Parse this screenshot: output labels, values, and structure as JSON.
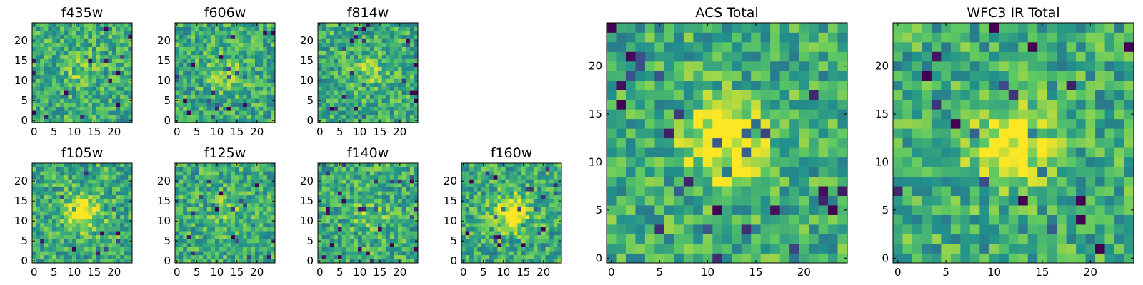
{
  "figure": {
    "colormap": "viridis",
    "colors": [
      "#440154",
      "#3b528b",
      "#21918c",
      "#5ec962",
      "#fde725"
    ]
  },
  "chart_data": [
    {
      "type": "heatmap",
      "title": "f435w",
      "grid_size": 25,
      "xlim": [
        -0.5,
        24.5
      ],
      "ylim": [
        -0.5,
        24.5
      ],
      "xticks": [
        0,
        5,
        10,
        15,
        20
      ],
      "yticks": [
        0,
        5,
        10,
        15,
        20
      ],
      "values": [],
      "note": "25x25 pixel cutout, pixel-level noise; low-contrast faint source"
    },
    {
      "type": "heatmap",
      "title": "f606w",
      "grid_size": 25,
      "xlim": [
        -0.5,
        24.5
      ],
      "ylim": [
        -0.5,
        24.5
      ],
      "xticks": [
        0,
        5,
        10,
        15,
        20
      ],
      "yticks": [
        0,
        5,
        10,
        15,
        20
      ],
      "values": []
    },
    {
      "type": "heatmap",
      "title": "f814w",
      "grid_size": 25,
      "xlim": [
        -0.5,
        24.5
      ],
      "ylim": [
        -0.5,
        24.5
      ],
      "xticks": [
        0,
        5,
        10,
        15,
        20
      ],
      "yticks": [
        0,
        5,
        10,
        15,
        20
      ],
      "values": []
    },
    {
      "type": "heatmap",
      "title": "f105w",
      "grid_size": 25,
      "xlim": [
        -0.5,
        24.5
      ],
      "ylim": [
        -0.5,
        24.5
      ],
      "xticks": [
        0,
        5,
        10,
        15,
        20
      ],
      "yticks": [
        0,
        5,
        10,
        15,
        20
      ],
      "values": [],
      "source_center": [
        12,
        12
      ]
    },
    {
      "type": "heatmap",
      "title": "f125w",
      "grid_size": 25,
      "xlim": [
        -0.5,
        24.5
      ],
      "ylim": [
        -0.5,
        24.5
      ],
      "xticks": [
        0,
        5,
        10,
        15,
        20
      ],
      "yticks": [
        0,
        5,
        10,
        15,
        20
      ],
      "values": []
    },
    {
      "type": "heatmap",
      "title": "f140w",
      "grid_size": 25,
      "xlim": [
        -0.5,
        24.5
      ],
      "ylim": [
        -0.5,
        24.5
      ],
      "xticks": [
        0,
        5,
        10,
        15,
        20
      ],
      "yticks": [
        0,
        5,
        10,
        15,
        20
      ],
      "values": []
    },
    {
      "type": "heatmap",
      "title": "f160w",
      "grid_size": 25,
      "xlim": [
        -0.5,
        24.5
      ],
      "ylim": [
        -0.5,
        24.5
      ],
      "xticks": [
        0,
        5,
        10,
        15,
        20
      ],
      "yticks": [
        0,
        5,
        10,
        15,
        20
      ],
      "values": [],
      "source_center": [
        12,
        12
      ]
    },
    {
      "type": "heatmap",
      "title": "ACS Total",
      "grid_size": 25,
      "xlim": [
        -0.5,
        24.5
      ],
      "ylim": [
        -0.5,
        24.5
      ],
      "xticks": [
        0,
        5,
        10,
        15,
        20
      ],
      "yticks": [
        0,
        5,
        10,
        15,
        20
      ],
      "values": [],
      "source_center": [
        12,
        12
      ]
    },
    {
      "type": "heatmap",
      "title": "WFC3 IR Total",
      "grid_size": 25,
      "xlim": [
        -0.5,
        24.5
      ],
      "ylim": [
        -0.5,
        24.5
      ],
      "xticks": [
        0,
        5,
        10,
        15,
        20
      ],
      "yticks": [
        0,
        5,
        10,
        15,
        20
      ],
      "values": [],
      "source_center": [
        12,
        12
      ]
    }
  ]
}
